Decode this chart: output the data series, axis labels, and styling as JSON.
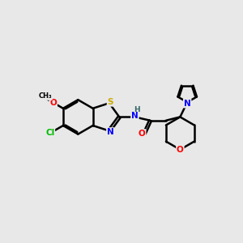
{
  "background_color": "#e8e8e8",
  "atom_colors": {
    "C": "#000000",
    "N": "#0000ff",
    "O": "#ff0000",
    "S": "#ccaa00",
    "Cl": "#00bb00",
    "H": "#336666"
  },
  "bond_color": "#000000",
  "bond_width": 1.8,
  "figsize": [
    3.0,
    3.0
  ],
  "dpi": 100
}
